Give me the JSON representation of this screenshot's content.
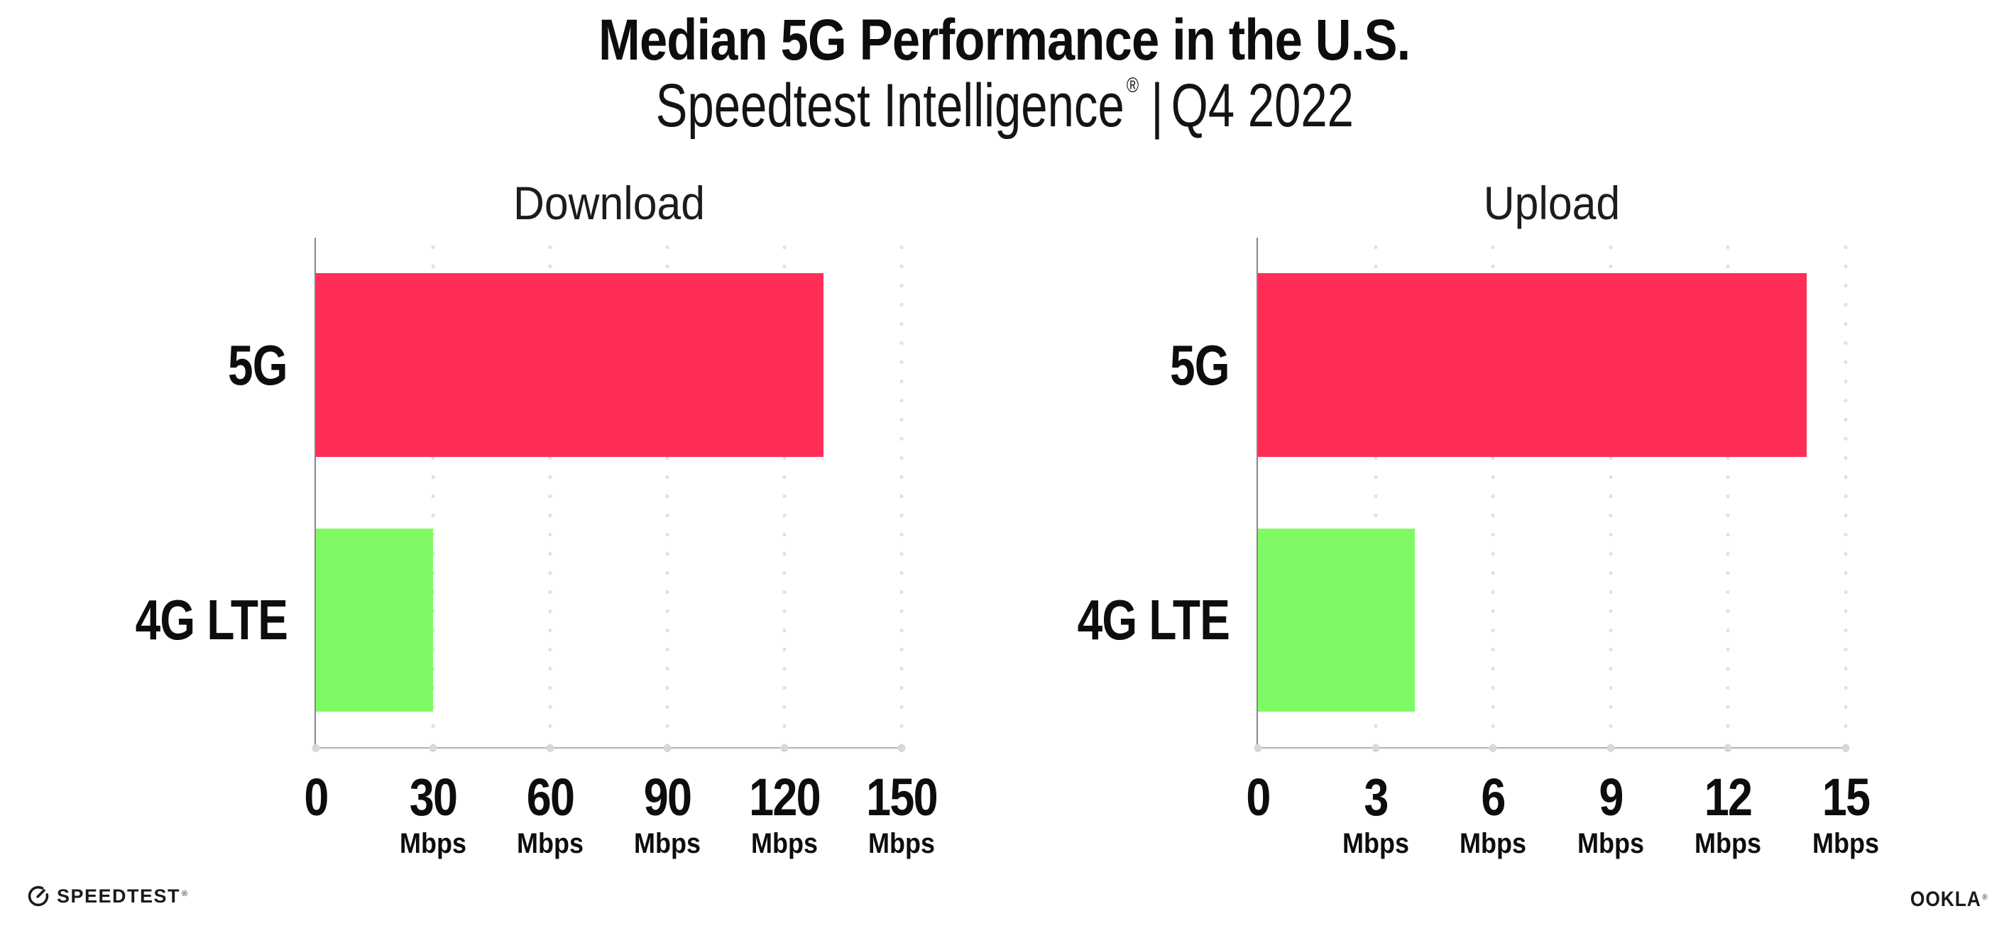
{
  "header": {
    "title": "Median 5G Performance in the U.S.",
    "subtitle": {
      "product": "Speedtest Intelligence",
      "registered_mark": "®",
      "separator": "|",
      "period": "Q4 2022"
    }
  },
  "chart_data": [
    {
      "type": "bar",
      "orientation": "horizontal",
      "title": "Download",
      "categories": [
        "5G",
        "4G LTE"
      ],
      "values": [
        130,
        30
      ],
      "unit": "Mbps",
      "xlim": [
        0,
        150
      ],
      "xticks": [
        "0",
        "30",
        "60",
        "90",
        "120",
        "150"
      ],
      "xtick_units": [
        "",
        "Mbps",
        "Mbps",
        "Mbps",
        "Mbps",
        "Mbps"
      ],
      "bar_colors": [
        "#ff2e56",
        "#80fa64"
      ],
      "grid": "dotted vertical gridlines at each tick",
      "legend": "none"
    },
    {
      "type": "bar",
      "orientation": "horizontal",
      "title": "Upload",
      "categories": [
        "5G",
        "4G LTE"
      ],
      "values": [
        14,
        4
      ],
      "unit": "Mbps",
      "xlim": [
        0,
        15
      ],
      "xticks": [
        "0",
        "3",
        "6",
        "9",
        "12",
        "15"
      ],
      "xtick_units": [
        "",
        "Mbps",
        "Mbps",
        "Mbps",
        "Mbps",
        "Mbps"
      ],
      "bar_colors": [
        "#ff2e56",
        "#80fa64"
      ],
      "grid": "dotted vertical gridlines at each tick",
      "legend": "none"
    }
  ],
  "footer": {
    "speedtest_logo_text": "SPEEDTEST",
    "speedtest_trademark": "®",
    "ookla_logo_text": "OOKLA",
    "ookla_trademark": "®"
  },
  "colors": {
    "bar_5g": "#ff2e56",
    "bar_4g_lte": "#80fa64",
    "axis_vertical": "#85858b",
    "axis_horizontal": "#b0b0b6",
    "gridline_dots": "#dfe0e8",
    "text": "#0d0d0d",
    "background": "#ffffff"
  }
}
